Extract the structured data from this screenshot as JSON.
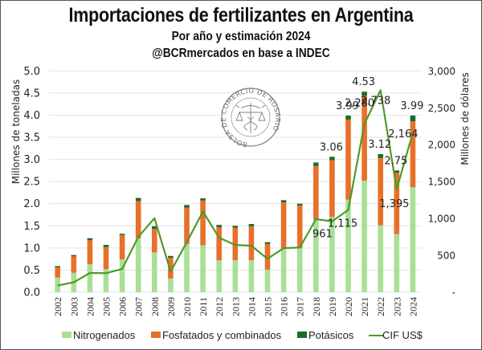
{
  "header": {
    "title": "Importaciones de fertilizantes en Argentina",
    "subtitle": "Por año y estimación 2024",
    "source": "@BCRmercados en base a INDEC"
  },
  "watermark": {
    "text": "BOLSA DE COMERCIO DE ROSARIO",
    "icon": "caduceus-scales-seal-icon"
  },
  "colors": {
    "nitrogenados": "#A9DF97",
    "fosfatados": "#E8702A",
    "potasicos": "#1E6B28",
    "cif": "#4E9A2A",
    "grid": "#E4E4E4"
  },
  "chart_data": {
    "type": "bar",
    "stacked": true,
    "title": "Importaciones de fertilizantes en Argentina",
    "subtitle": "Por año y estimación 2024 — @BCRmercados en base a INDEC",
    "xlabel": "",
    "ylabel": "Millones de toneladas",
    "y2label": "Millones de dólares",
    "ylim": [
      0,
      5
    ],
    "y2lim": [
      0,
      3000
    ],
    "yticks": [
      "0.0",
      "0.5",
      "1.0",
      "1.5",
      "2.0",
      "2.5",
      "3.0",
      "3.5",
      "4.0",
      "4.5",
      "5.0"
    ],
    "y2ticks": [
      "-",
      "500",
      "1,000",
      "1,500",
      "2,000",
      "2,500",
      "3,000"
    ],
    "grid": true,
    "legend_position": "bottom",
    "categories": [
      "2002",
      "2003",
      "2004",
      "2005",
      "2006",
      "2007",
      "2008",
      "2009",
      "2010",
      "2011",
      "2012",
      "2013",
      "2014",
      "2015",
      "2016",
      "2017",
      "2018",
      "2019",
      "2020",
      "2021",
      "2022",
      "2023",
      "2024"
    ],
    "series": [
      {
        "name": "Nitrogenados",
        "axis": "left",
        "kind": "bar",
        "values": [
          0.33,
          0.44,
          0.63,
          0.52,
          0.74,
          1.22,
          0.9,
          0.31,
          1.09,
          1.06,
          0.72,
          0.72,
          0.72,
          0.51,
          1.0,
          1.0,
          1.64,
          1.7,
          2.09,
          2.52,
          1.51,
          1.31,
          2.37
        ]
      },
      {
        "name": "Fosfatados y combinados",
        "axis": "left",
        "kind": "bar",
        "values": [
          0.23,
          0.37,
          0.55,
          0.5,
          0.55,
          0.84,
          0.53,
          0.47,
          0.82,
          1.01,
          0.75,
          0.74,
          0.77,
          0.58,
          1.03,
          0.96,
          1.21,
          1.28,
          1.81,
          1.92,
          1.52,
          1.39,
          1.49
        ]
      },
      {
        "name": "Potásicos",
        "axis": "left",
        "kind": "bar",
        "values": [
          0.03,
          0.03,
          0.04,
          0.05,
          0.03,
          0.07,
          0.06,
          0.04,
          0.06,
          0.05,
          0.05,
          0.04,
          0.05,
          0.04,
          0.05,
          0.04,
          0.08,
          0.08,
          0.09,
          0.09,
          0.09,
          0.05,
          0.13
        ]
      },
      {
        "name": "CIF US$",
        "axis": "right",
        "kind": "line",
        "values": [
          90,
          134,
          261,
          258,
          315,
          750,
          1003,
          279,
          677,
          1094,
          739,
          641,
          630,
          453,
          598,
          605,
          990,
          961,
          1115,
          2280,
          2738,
          1395,
          2164
        ]
      }
    ],
    "annotations": {
      "totals": [
        {
          "category": "2019",
          "text": "3.06"
        },
        {
          "category": "2020",
          "text": "3.99"
        },
        {
          "category": "2021",
          "text": "4.53"
        },
        {
          "category": "2022",
          "text": "3.12"
        },
        {
          "category": "2023",
          "text": "2.75"
        },
        {
          "category": "2024",
          "text": "3.99"
        }
      ],
      "cif": [
        {
          "category": "2019",
          "text": "961"
        },
        {
          "category": "2020",
          "text": "1,115"
        },
        {
          "category": "2021",
          "text": "2,280"
        },
        {
          "category": "2022",
          "text": "2,738"
        },
        {
          "category": "2023",
          "text": "1,395"
        },
        {
          "category": "2024",
          "text": "2,164"
        }
      ]
    }
  }
}
